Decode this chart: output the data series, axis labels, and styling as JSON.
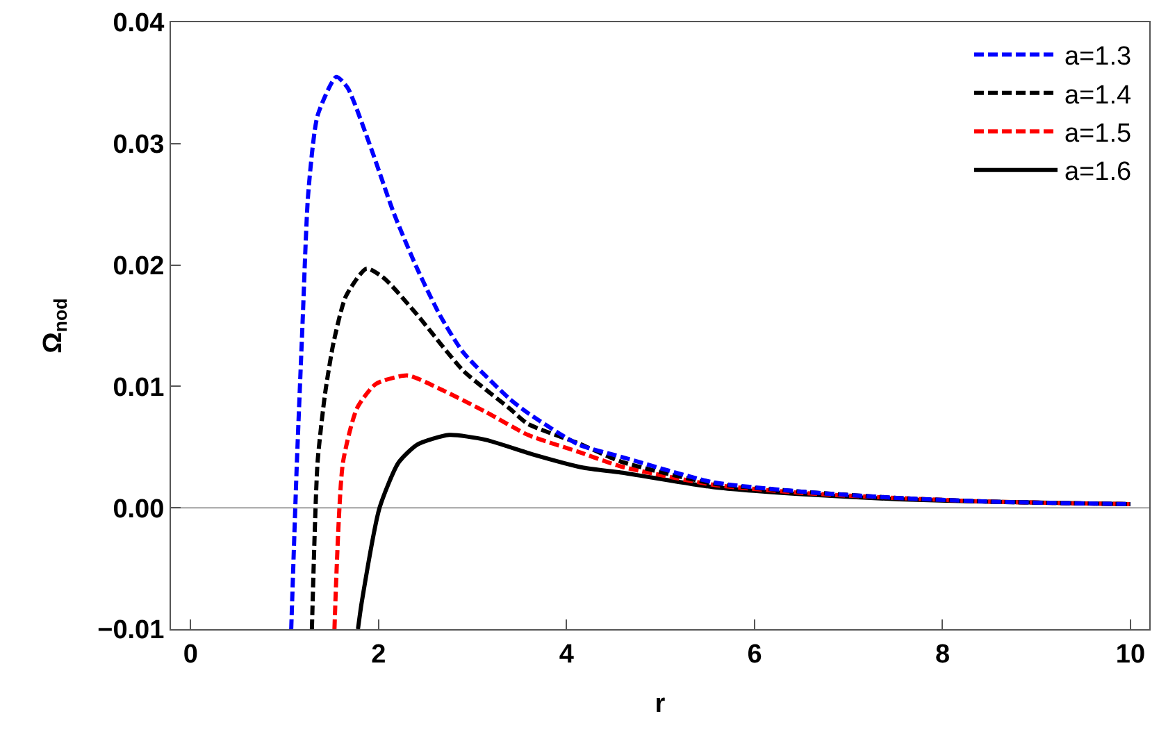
{
  "chart_data": {
    "type": "line",
    "xlabel": "r",
    "ylabel": "Ω$_{nod}$",
    "xlim": [
      -0.21,
      10.2
    ],
    "ylim": [
      -0.01,
      0.04
    ],
    "xticks": [
      0,
      2,
      4,
      6,
      8,
      10
    ],
    "yticks": [
      {
        "value": -0.01,
        "label": "−0.01"
      },
      {
        "value": 0,
        "label": "0.00"
      },
      {
        "value": 0.01,
        "label": "0.01"
      },
      {
        "value": 0.02,
        "label": "0.02"
      },
      {
        "value": 0.03,
        "label": "0.03"
      },
      {
        "value": 0.04,
        "label": "0.04"
      }
    ],
    "grid": false,
    "legend": "top right",
    "marker": "none",
    "ref_lines": [
      {
        "axis": "y",
        "value": 0,
        "color": "#a0a0a0"
      }
    ],
    "series": [
      {
        "name": "a=1.3",
        "color": "#0000ff",
        "line_style": "dashed",
        "x": [
          1.07,
          1.1,
          1.13,
          1.19,
          1.25,
          1.35,
          1.55,
          1.67,
          1.92,
          2.16,
          2.41,
          2.65,
          2.9,
          3.39,
          3.59,
          4.13,
          4.58,
          5.56,
          6.55,
          7.54,
          8.52,
          10
        ],
        "values": [
          -0.01,
          -0.003,
          0.0037,
          0.0151,
          0.0258,
          0.0323,
          0.0355,
          0.0346,
          0.0296,
          0.0243,
          0.0197,
          0.0159,
          0.0128,
          0.009,
          0.0078,
          0.0052,
          0.0042,
          0.0021,
          0.0013,
          0.0008,
          0.0005,
          0.0003
        ]
      },
      {
        "name": "a=1.4",
        "color": "#000000",
        "line_style": "dashed",
        "x": [
          1.29,
          1.35,
          1.43,
          1.52,
          1.65,
          1.87,
          2.06,
          2.41,
          2.9,
          3.39,
          3.59,
          4.13,
          4.58,
          5.56,
          6.55,
          7.54,
          8.52,
          10
        ],
        "values": [
          -0.01,
          0.0037,
          0.0094,
          0.0136,
          0.0174,
          0.0197,
          0.0189,
          0.0159,
          0.0113,
          0.0082,
          0.0069,
          0.0053,
          0.0038,
          0.002,
          0.0013,
          0.0008,
          0.0005,
          0.0003
        ]
      },
      {
        "name": "a=1.5",
        "color": "#ff0000",
        "line_style": "dashed",
        "x": [
          1.53,
          1.62,
          1.77,
          1.97,
          2.31,
          2.65,
          3.14,
          3.59,
          4.13,
          4.58,
          5.56,
          6.55,
          7.54,
          8.52,
          10
        ],
        "values": [
          -0.01,
          0.0037,
          0.0082,
          0.0102,
          0.0109,
          0.0098,
          0.0079,
          0.006,
          0.0046,
          0.0034,
          0.0019,
          0.0012,
          0.0008,
          0.0005,
          0.0003
        ]
      },
      {
        "name": "a=1.6",
        "color": "#000000",
        "line_style": "solid",
        "x": [
          1.78,
          1.82,
          2.01,
          2.21,
          2.41,
          2.75,
          3.14,
          3.64,
          4.18,
          4.58,
          5.56,
          6.55,
          7.54,
          8.52,
          10
        ],
        "values": [
          -0.01,
          -0.0078,
          0,
          0.0037,
          0.0052,
          0.006,
          0.0056,
          0.0044,
          0.0033,
          0.0029,
          0.0017,
          0.0011,
          0.0007,
          0.0005,
          0.0003
        ]
      }
    ]
  }
}
